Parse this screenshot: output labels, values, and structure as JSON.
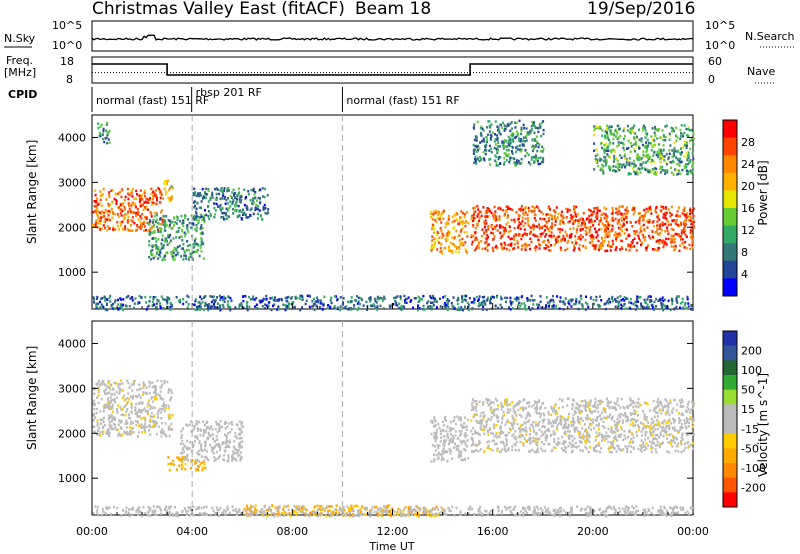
{
  "header": {
    "title": "Christmas Valley East (fitACF)",
    "beam": "Beam 18",
    "date": "19/Sep/2016"
  },
  "panels": {
    "nsky_label": "N.Sky",
    "nsearch_label": "N.Search",
    "freq_label": "Freq.",
    "freq_unit": "[MHz]",
    "nave_label": "Nave",
    "cpid_label": "CPID",
    "nsky_ticks": [
      "10^5",
      "10^0"
    ],
    "nsearch_ticks": [
      "10^5",
      "10^0"
    ],
    "freq_ticks": [
      "18",
      "8"
    ],
    "nave_ticks": [
      "60",
      "0"
    ],
    "cpid_segments": [
      {
        "label": "normal (fast) 151 RF",
        "start_h": 0,
        "end_h": 10
      },
      {
        "label": "rbsp 201 RF",
        "start_h": 3.98,
        "end_h": 4.02
      },
      {
        "label": "normal (fast) 151 RF",
        "start_h": 10,
        "end_h": 24
      }
    ],
    "freq_series": [
      {
        "h": 0,
        "mhz": 16
      },
      {
        "h": 3,
        "mhz": 16
      },
      {
        "h": 3,
        "mhz": 10.5
      },
      {
        "h": 15.1,
        "mhz": 10.5
      },
      {
        "h": 15.1,
        "mhz": 16
      },
      {
        "h": 24,
        "mhz": 16
      }
    ],
    "nave_level": 20
  },
  "axes": {
    "ylabel": "Slant Range [km]",
    "xlabel": "Time UT",
    "yticks": [
      "4000",
      "3000",
      "2000",
      "1000"
    ],
    "xticks": [
      "00:00",
      "04:00",
      "08:00",
      "12:00",
      "16:00",
      "20:00",
      "00:00"
    ]
  },
  "colorbars": {
    "power": {
      "title": "Power [dB]",
      "ticks": [
        "28",
        "24",
        "20",
        "16",
        "12",
        "8",
        "4"
      ],
      "colors": [
        "#ff0000",
        "#ff4400",
        "#ff8800",
        "#ffb000",
        "#e6e600",
        "#66cc33",
        "#33aa66",
        "#337777",
        "#224499",
        "#0000ff"
      ]
    },
    "velocity": {
      "title": "Velocity [m s^-1]",
      "ticks": [
        "200",
        "100",
        "50",
        "15",
        "-15",
        "-50",
        "-100",
        "-200"
      ],
      "colors": [
        "#2233aa",
        "#335599",
        "#226633",
        "#33aa33",
        "#99dd33",
        "#bbbbbb",
        "#bbbbbb",
        "#ffcc00",
        "#ffaa00",
        "#ff8800",
        "#ff5500",
        "#ff0000"
      ]
    }
  },
  "chart_data": {
    "type": "heatmap",
    "title": "Christmas Valley East (fitACF)",
    "xlabel": "Time UT",
    "ylabel": "Slant Range [km]",
    "xlim_hours": [
      0,
      24
    ],
    "ylim_km": [
      180,
      4500
    ],
    "power_scatter_regions": [
      {
        "t0": 0.0,
        "t1": 2.8,
        "r0": 1950,
        "r1": 2900,
        "db": 24
      },
      {
        "t0": 2.8,
        "t1": 3.2,
        "r0": 2600,
        "r1": 3100,
        "db": 18
      },
      {
        "t0": 0.2,
        "t1": 0.7,
        "r0": 3900,
        "r1": 4350,
        "db": 10
      },
      {
        "t0": 2.2,
        "t1": 4.5,
        "r0": 1300,
        "r1": 2300,
        "db": 11
      },
      {
        "t0": 4.0,
        "t1": 7.0,
        "r0": 2200,
        "r1": 2900,
        "db": 9
      },
      {
        "t0": 13.5,
        "t1": 15.0,
        "r0": 1450,
        "r1": 2400,
        "db": 22
      },
      {
        "t0": 15.1,
        "t1": 24.0,
        "r0": 1500,
        "r1": 2500,
        "db": 26
      },
      {
        "t0": 15.2,
        "t1": 18.0,
        "r0": 3400,
        "r1": 4400,
        "db": 10
      },
      {
        "t0": 20.0,
        "t1": 24.0,
        "r0": 3200,
        "r1": 4300,
        "db": 12
      },
      {
        "t0": 0.0,
        "t1": 24.0,
        "r0": 180,
        "r1": 500,
        "db": 8
      }
    ],
    "velocity_scatter_regions": [
      {
        "t0": 0.0,
        "t1": 3.2,
        "r0": 1950,
        "r1": 3200,
        "v": 0
      },
      {
        "t0": 3.0,
        "t1": 4.5,
        "r0": 1200,
        "r1": 1500,
        "v": -60
      },
      {
        "t0": 3.5,
        "t1": 6.0,
        "r0": 1400,
        "r1": 2300,
        "v": 30
      },
      {
        "t0": 13.5,
        "t1": 15.0,
        "r0": 1400,
        "r1": 2400,
        "v": 10
      },
      {
        "t0": 15.1,
        "t1": 24.0,
        "r0": 1600,
        "r1": 2800,
        "v": 0
      },
      {
        "t0": 6.0,
        "t1": 14.0,
        "r0": 180,
        "r1": 420,
        "v": -60
      },
      {
        "t0": 0.0,
        "t1": 24.0,
        "r0": 180,
        "r1": 400,
        "v": 30
      }
    ]
  }
}
